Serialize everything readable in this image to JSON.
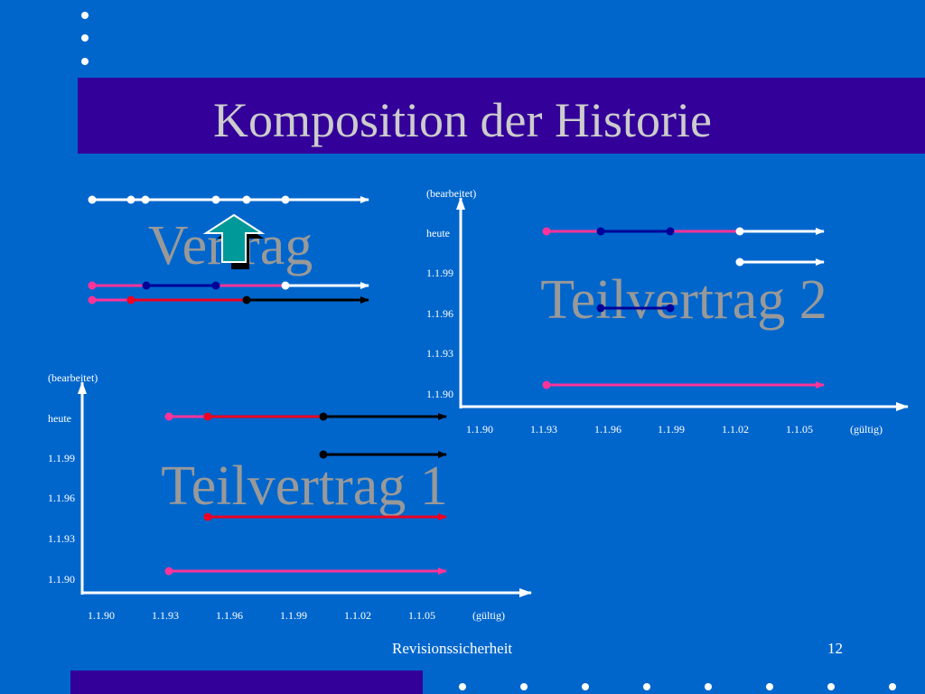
{
  "slide": {
    "title": "Komposition der Historie",
    "footer_text": "Revisionssicherheit",
    "page_number": "12"
  },
  "colors": {
    "background": "#0066CC",
    "title_bar": "#330099",
    "title_text": "#CCCCCC",
    "watermark_text": "#999999",
    "line_pink": "#FF3399",
    "line_red": "#EE0022",
    "line_darkblue": "#000099",
    "line_black": "#000000",
    "line_white": "#FFFFFF",
    "arrow_fill": "#009999"
  },
  "top_diagram": {
    "label": "Vertrag"
  },
  "chart_left": {
    "watermark": "Teilvertrag 1",
    "y_axis_title": "(bearbeitet)",
    "y_labels": [
      "heute",
      "1.1.99",
      "1.1.96",
      "1.1.93",
      "1.1.90"
    ],
    "x_labels": [
      "1.1.90",
      "1.1.93",
      "1.1.96",
      "1.1.99",
      "1.1.02",
      "1.1.05"
    ],
    "x_axis_title": "(gültig)"
  },
  "chart_right": {
    "watermark": "Teilvertrag 2",
    "y_axis_title": "(bearbeitet)",
    "y_labels": [
      "heute",
      "1.1.99",
      "1.1.96",
      "1.1.93",
      "1.1.90"
    ],
    "x_labels": [
      "1.1.90",
      "1.1.93",
      "1.1.96",
      "1.1.99",
      "1.1.02",
      "1.1.05"
    ],
    "x_axis_title": "(gültig)"
  }
}
